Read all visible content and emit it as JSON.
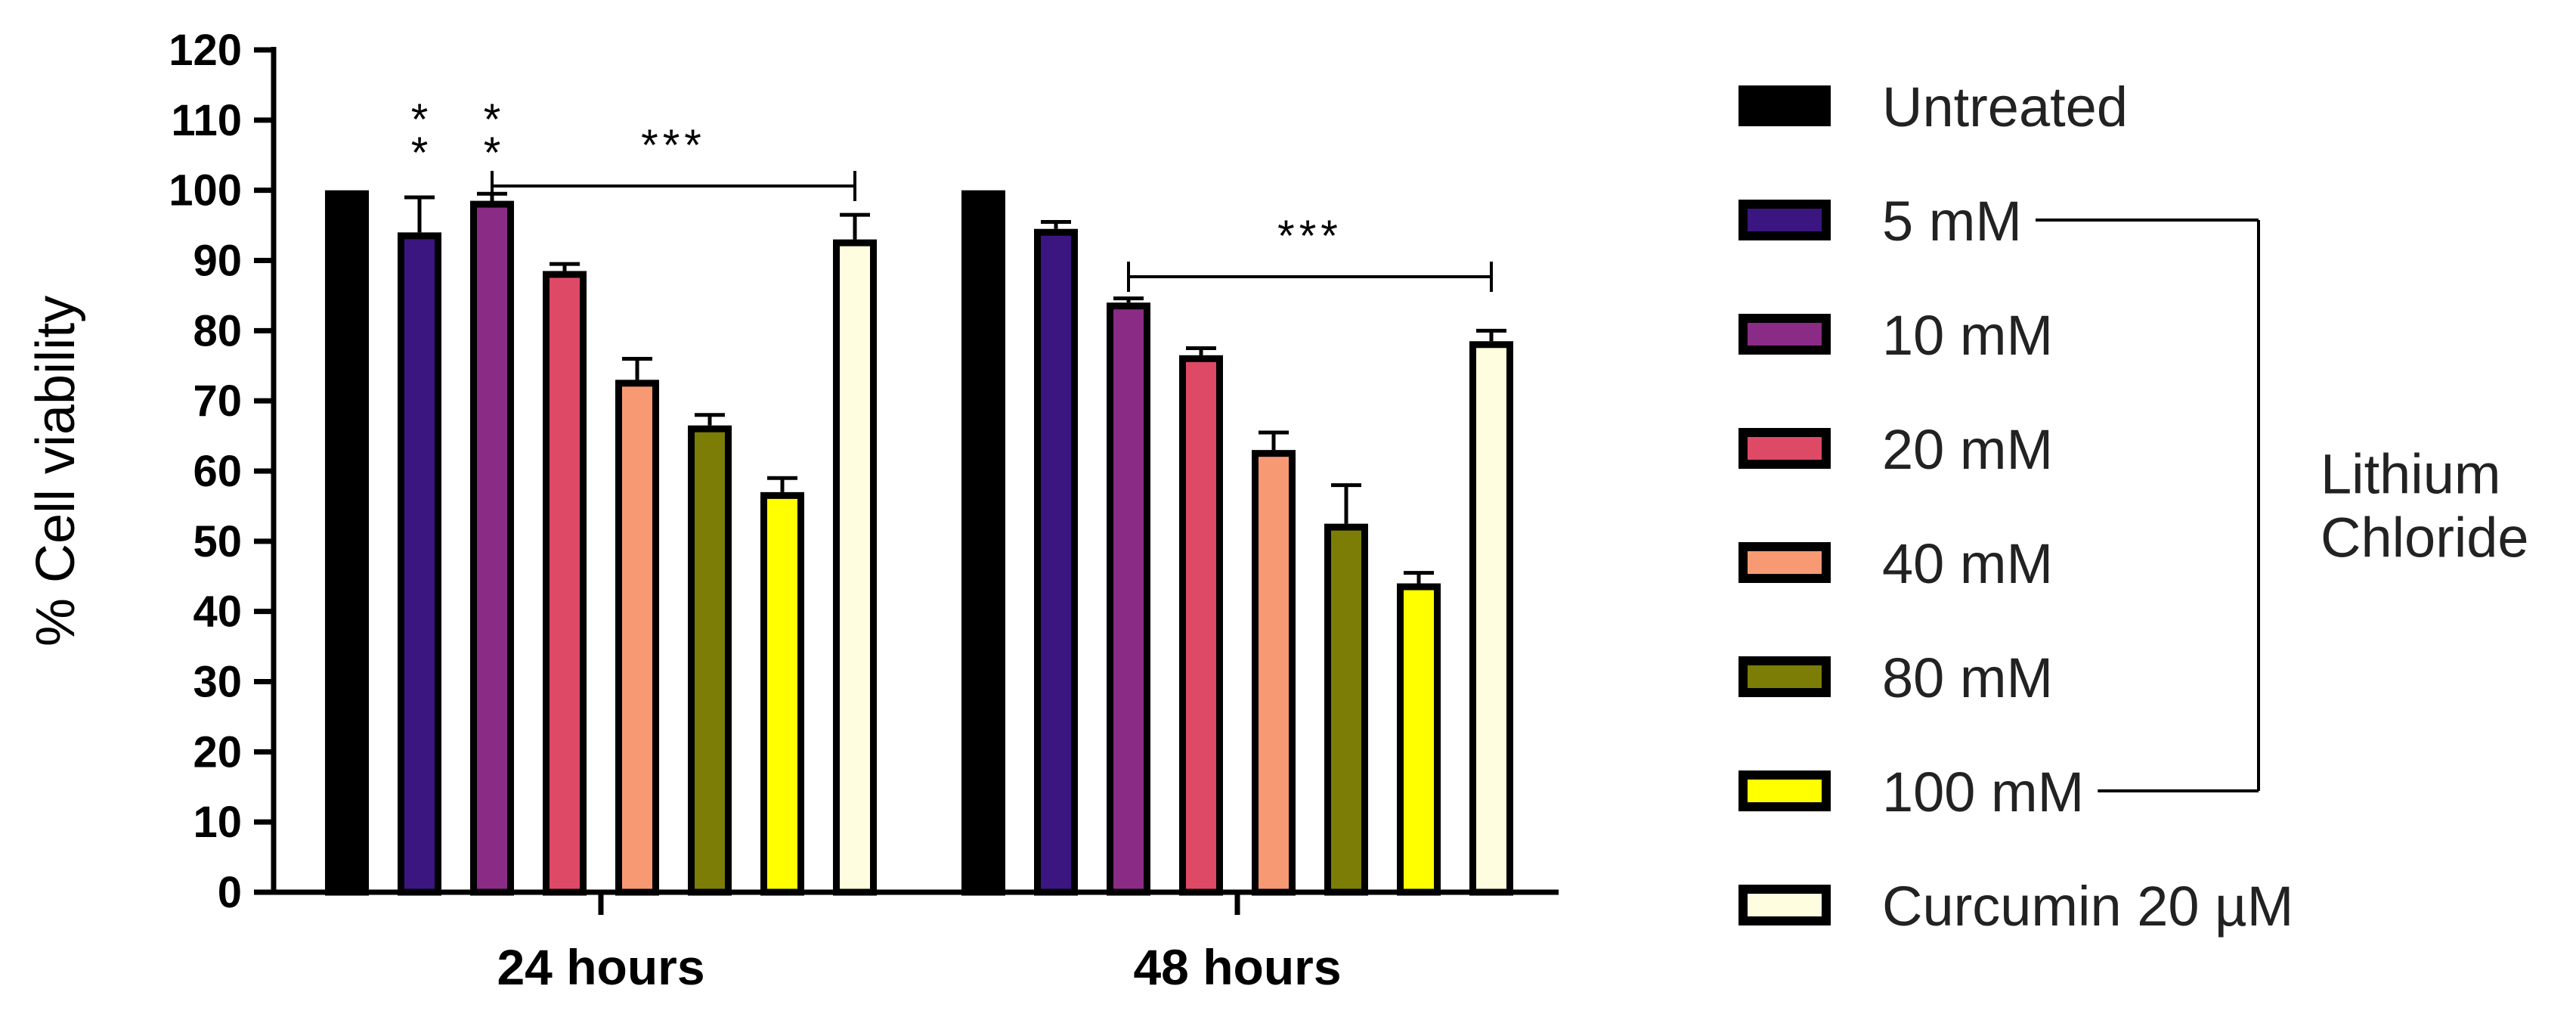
{
  "chart_data": {
    "type": "bar",
    "categories": [
      "24 hours",
      "48 hours"
    ],
    "ylabel": "% Cell viability",
    "xlabel": "",
    "ylim": [
      0,
      120
    ],
    "yticks": [
      0,
      10,
      20,
      30,
      40,
      50,
      60,
      70,
      80,
      90,
      100,
      110,
      120
    ],
    "series": [
      {
        "name": "Untreated",
        "color": "#000000",
        "values": [
          100,
          100
        ],
        "errors": [
          0,
          0
        ]
      },
      {
        "name": "5 mM",
        "color": "#3b1680",
        "values": [
          94,
          94.5
        ],
        "errors": [
          5,
          1
        ]
      },
      {
        "name": "10 mM",
        "color": "#8a2c86",
        "values": [
          98.5,
          84
        ],
        "errors": [
          1,
          0.6
        ]
      },
      {
        "name": "20 mM",
        "color": "#de4a66",
        "values": [
          88.5,
          76.5
        ],
        "errors": [
          1,
          1
        ]
      },
      {
        "name": "40 mM",
        "color": "#f79a73",
        "values": [
          73,
          63
        ],
        "errors": [
          3,
          2.5
        ]
      },
      {
        "name": "80 mM",
        "color": "#7b7d06",
        "values": [
          66.5,
          52.5
        ],
        "errors": [
          1.5,
          5.5
        ]
      },
      {
        "name": "100 mM",
        "color": "#ffff00",
        "values": [
          57,
          44
        ],
        "errors": [
          2,
          1.5
        ]
      },
      {
        "name": "Curcumin 20 µM",
        "color": "#fffde0",
        "values": [
          93,
          78.5
        ],
        "errors": [
          3.5,
          1.5
        ]
      }
    ],
    "significance": [
      {
        "text": "*",
        "group": 0,
        "series": 1
      },
      {
        "text": "*",
        "group": 0,
        "series": 1
      },
      {
        "text": "*",
        "group": 0,
        "series": 2
      },
      {
        "text": "*",
        "group": 0,
        "series": 2
      },
      {
        "text": "***",
        "group": 0,
        "from_series": 2,
        "to_series": 7
      },
      {
        "text": "***",
        "group": 1,
        "from_series": 2,
        "to_series": 7
      }
    ],
    "legend_position": "right",
    "legend_group_label": "Lithium Chloride",
    "legend_group_label_lines": [
      "Lithium",
      "Chloride"
    ],
    "legend_group_series": [
      1,
      6
    ]
  }
}
